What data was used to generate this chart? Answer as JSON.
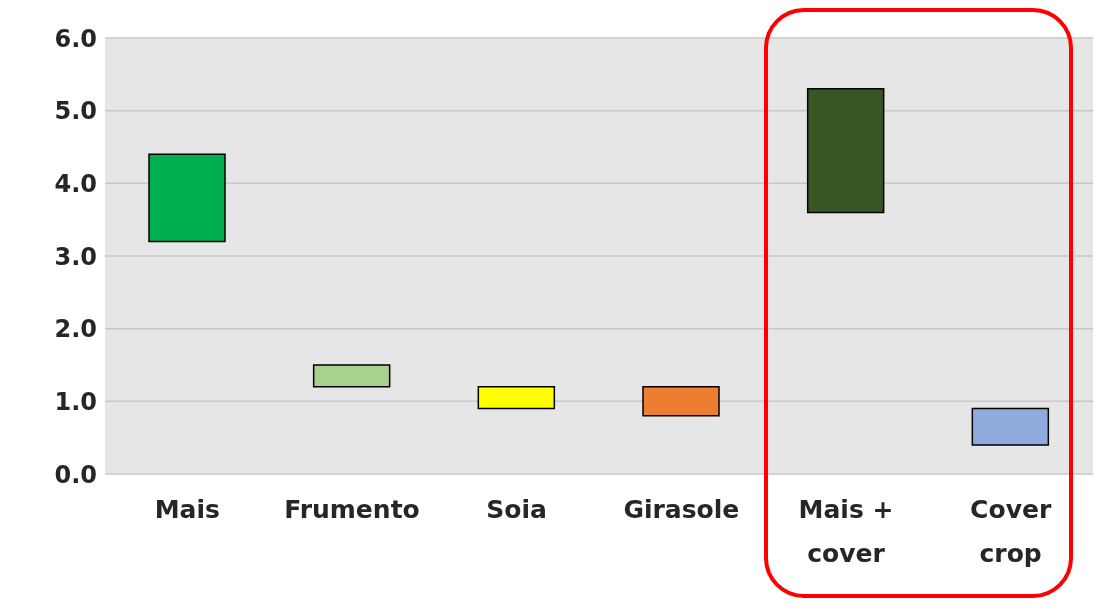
{
  "chart_data": {
    "type": "bar",
    "categories": [
      "Mais",
      "Frumento",
      "Soia",
      "Girasole",
      "Mais + cover",
      "Cover crop"
    ],
    "base": [
      3.2,
      1.2,
      0.9,
      0.8,
      3.6,
      0.4
    ],
    "values": [
      1.2,
      0.3,
      0.3,
      0.4,
      1.7,
      0.5
    ],
    "colors": [
      "#00b050",
      "#a9d18e",
      "#ffff00",
      "#ed7d31",
      "#375623",
      "#8faadc"
    ],
    "ylim": [
      0,
      6
    ],
    "yticks": [
      {
        "value": 0,
        "label": "0.0"
      },
      {
        "value": 1,
        "label": "1.0"
      },
      {
        "value": 2,
        "label": "2.0"
      },
      {
        "value": 3,
        "label": "3.0"
      },
      {
        "value": 4,
        "label": "4.0"
      },
      {
        "value": 5,
        "label": "5.0"
      },
      {
        "value": 6,
        "label": "6.0"
      }
    ],
    "grid": "y"
  }
}
